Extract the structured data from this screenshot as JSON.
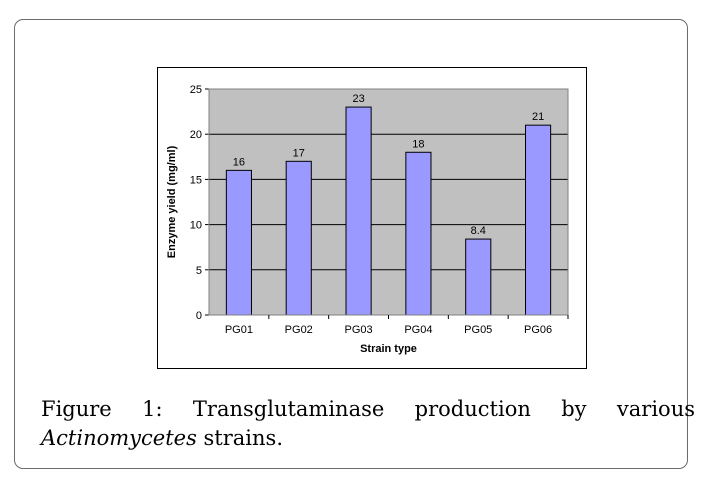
{
  "chart_data": {
    "type": "bar",
    "categories": [
      "PG01",
      "PG02",
      "PG03",
      "PG04",
      "PG05",
      "PG06"
    ],
    "values": [
      16,
      17,
      23,
      18,
      8.4,
      21
    ],
    "data_labels": [
      "16",
      "17",
      "23",
      "18",
      "8.4",
      "21"
    ],
    "xlabel": "Strain type",
    "ylabel": "Enzyme yield (mg/ml)",
    "ylim": [
      0,
      25
    ],
    "yticks": [
      0,
      5,
      10,
      15,
      20,
      25
    ],
    "grid": true,
    "colors": {
      "bar": "#9999ff",
      "plot_background": "#c0c0c0",
      "gridline": "#000000"
    }
  },
  "caption": {
    "label": "Figure 1",
    "text_before": ": Transglutaminase production by various ",
    "italic": "Actinomycetes",
    "text_after": " strains."
  }
}
